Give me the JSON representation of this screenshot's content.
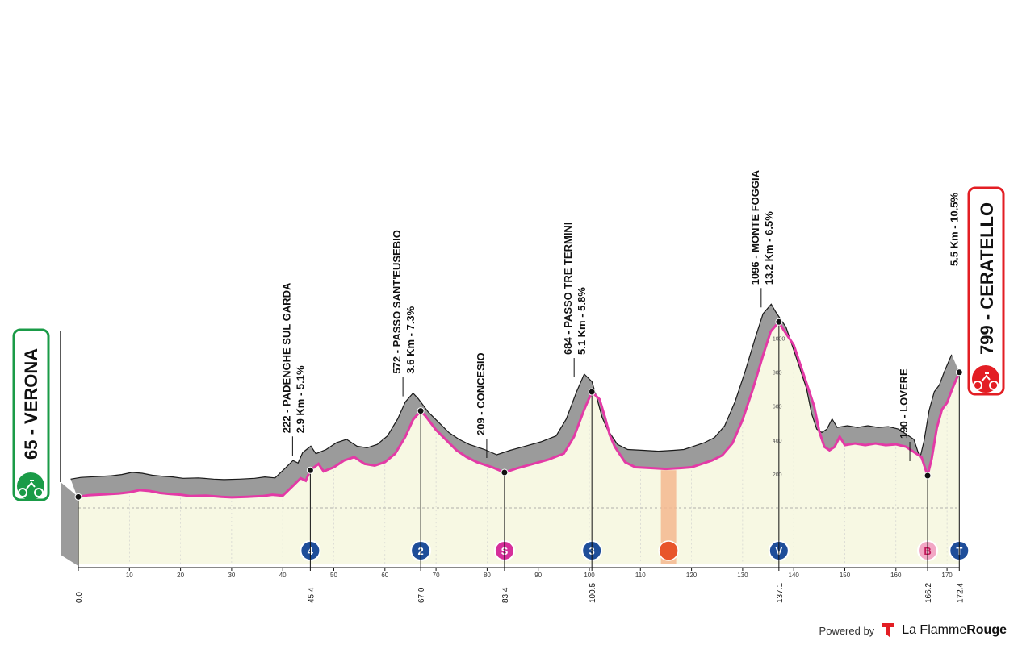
{
  "chart_data": {
    "type": "area",
    "title": "",
    "xlabel": "",
    "ylabel": "",
    "xlim": [
      0,
      172.4
    ],
    "ylim": [
      0,
      1100
    ],
    "x_ticks": [
      10,
      20,
      30,
      40,
      50,
      60,
      70,
      80,
      90,
      100,
      110,
      120,
      130,
      140,
      150,
      160,
      170
    ],
    "y_ticks": [
      200,
      400,
      600,
      800,
      1000
    ],
    "profile": [
      [
        0,
        65
      ],
      [
        2,
        75
      ],
      [
        5,
        80
      ],
      [
        8,
        85
      ],
      [
        10,
        92
      ],
      [
        12,
        105
      ],
      [
        14,
        100
      ],
      [
        16,
        88
      ],
      [
        18,
        82
      ],
      [
        20,
        78
      ],
      [
        22,
        70
      ],
      [
        25,
        72
      ],
      [
        28,
        65
      ],
      [
        30,
        62
      ],
      [
        33,
        65
      ],
      [
        36,
        70
      ],
      [
        38,
        78
      ],
      [
        40,
        72
      ],
      [
        42,
        130
      ],
      [
        43.5,
        175
      ],
      [
        44.5,
        160
      ],
      [
        45.4,
        222
      ],
      [
        47,
        260
      ],
      [
        48,
        215
      ],
      [
        50,
        240
      ],
      [
        52,
        280
      ],
      [
        54,
        300
      ],
      [
        56,
        260
      ],
      [
        58,
        250
      ],
      [
        60,
        270
      ],
      [
        62,
        320
      ],
      [
        64,
        420
      ],
      [
        65.5,
        520
      ],
      [
        67,
        572
      ],
      [
        68,
        540
      ],
      [
        70,
        460
      ],
      [
        72,
        400
      ],
      [
        74,
        340
      ],
      [
        76,
        300
      ],
      [
        78,
        270
      ],
      [
        80,
        250
      ],
      [
        81,
        240
      ],
      [
        83.4,
        209
      ],
      [
        86,
        235
      ],
      [
        89,
        260
      ],
      [
        92,
        285
      ],
      [
        95,
        320
      ],
      [
        97,
        420
      ],
      [
        99,
        580
      ],
      [
        100.5,
        684
      ],
      [
        102,
        640
      ],
      [
        103,
        540
      ],
      [
        104,
        430
      ],
      [
        105,
        360
      ],
      [
        107,
        270
      ],
      [
        109,
        240
      ],
      [
        112,
        235
      ],
      [
        115,
        230
      ],
      [
        118,
        235
      ],
      [
        120,
        240
      ],
      [
        122,
        260
      ],
      [
        124,
        280
      ],
      [
        126,
        310
      ],
      [
        128,
        380
      ],
      [
        130,
        520
      ],
      [
        132,
        700
      ],
      [
        134,
        900
      ],
      [
        135.5,
        1040
      ],
      [
        137.1,
        1096
      ],
      [
        138,
        1050
      ],
      [
        140,
        960
      ],
      [
        142,
        780
      ],
      [
        144,
        600
      ],
      [
        145,
        450
      ],
      [
        146,
        360
      ],
      [
        147,
        340
      ],
      [
        148,
        360
      ],
      [
        149,
        420
      ],
      [
        150,
        370
      ],
      [
        152,
        380
      ],
      [
        154,
        370
      ],
      [
        156,
        380
      ],
      [
        158,
        370
      ],
      [
        160,
        375
      ],
      [
        162,
        360
      ],
      [
        164,
        320
      ],
      [
        165,
        300
      ],
      [
        166.2,
        190
      ],
      [
        167,
        290
      ],
      [
        168,
        470
      ],
      [
        169,
        580
      ],
      [
        170,
        620
      ],
      [
        171,
        700
      ],
      [
        172.4,
        799
      ]
    ],
    "points": [
      {
        "km": 0.0,
        "label": "0.0"
      },
      {
        "km": 45.4,
        "label": "45.4"
      },
      {
        "km": 67.0,
        "label": "67.0"
      },
      {
        "km": 83.4,
        "label": "83.4"
      },
      {
        "km": 100.5,
        "label": "100.5"
      },
      {
        "km": 137.1,
        "label": "137.1"
      },
      {
        "km": 166.2,
        "label": "166.2"
      },
      {
        "km": 172.4,
        "label": "172.4"
      }
    ],
    "climbs": [
      {
        "km": 45.4,
        "line1": "222 - PADENGHE SUL GARDA",
        "line2": "2.9 Km - 5.1%",
        "icon": "4",
        "color": "#1f4e9a"
      },
      {
        "km": 67.0,
        "line1": "572 - PASSO SANT'EUSEBIO",
        "line2": "3.6 Km - 7.3%",
        "icon": "2",
        "color": "#1f4e9a"
      },
      {
        "km": 83.4,
        "line1": "209 - CONCESIO",
        "line2": "",
        "icon": "S",
        "color": "#d62f9a"
      },
      {
        "km": 100.5,
        "line1": "684 - PASSO TRE TERMINI",
        "line2": "5.1 Km - 5.8%",
        "icon": "3",
        "color": "#1f4e9a"
      },
      {
        "km": 137.1,
        "line1": "1096 - MONTE FOGGIA",
        "line2": "13.2 Km - 6.5%",
        "icon": "V",
        "color": "#1f4e9a"
      },
      {
        "km": 166.2,
        "line1": "190 - LOVERE",
        "line2": "",
        "icon": "B",
        "color": "#f2a7c5"
      },
      {
        "km": 172.4,
        "line1": "",
        "line2": "5.5 Km - 10.5%",
        "icon": "T",
        "color": "#1f4e9a"
      }
    ],
    "feed_zone": {
      "km_start": 114,
      "km_end": 117,
      "icon": "fork-knife"
    },
    "start": {
      "name": "65 - VERONA",
      "color": "#1a9b47"
    },
    "finish": {
      "name": "799 - CERATELLO",
      "color": "#e31e24"
    },
    "colors": {
      "profile_fill": "#9b9b9b",
      "base_fill": "#f7f8e3",
      "line": "#e33aa6",
      "grid": "#cccccc"
    }
  },
  "branding": {
    "powered_by": "Powered by",
    "brand_name": "La Flamme",
    "brand_bold": "Rouge"
  }
}
